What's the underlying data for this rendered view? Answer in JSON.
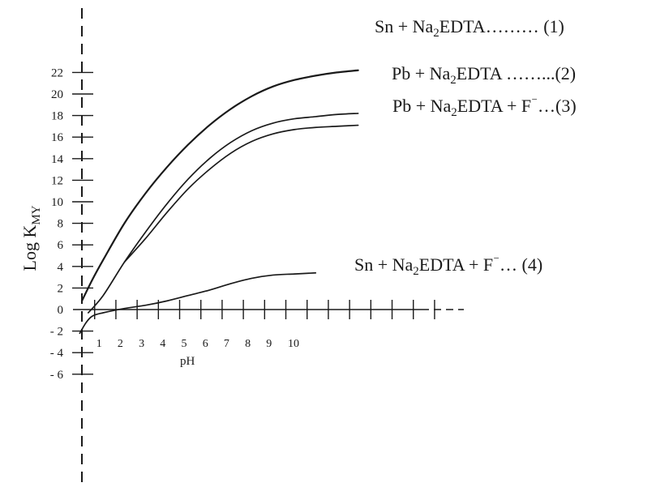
{
  "chart_data": {
    "type": "line",
    "xlabel": "pH",
    "ylabel": "Log K",
    "ylabel_sub": "MY",
    "x_ticks": [
      "1",
      "2",
      "3",
      "4",
      "5",
      "6",
      "7",
      "8",
      "9",
      "10"
    ],
    "y_ticks": [
      "22",
      "20",
      "18",
      "16",
      "14",
      "12",
      "10",
      "8",
      "6",
      "4",
      "2",
      "0",
      "- 2",
      "- 4",
      "- 6"
    ],
    "y_tick_values": [
      22,
      20,
      18,
      16,
      14,
      12,
      10,
      8,
      6,
      4,
      2,
      0,
      -2,
      -4,
      -6
    ],
    "xlim": [
      0,
      18
    ],
    "ylim": [
      -8,
      23
    ],
    "grid": false,
    "series": [
      {
        "name": "Sn + Na2EDTA……… (1)",
        "label_parts": [
          "Sn + Na",
          "2",
          "EDTA……… (1)"
        ],
        "x": [
          0,
          0.5,
          1,
          2,
          3,
          4,
          5,
          6,
          7,
          8,
          9,
          10,
          11,
          12,
          13
        ],
        "y": [
          0.8,
          2.8,
          4.6,
          8.0,
          10.8,
          13.2,
          15.3,
          17.1,
          18.6,
          19.8,
          20.7,
          21.3,
          21.7,
          22.0,
          22.2
        ]
      },
      {
        "name": "Pb + Na2EDTA ……...(2)",
        "label_parts": [
          "Pb + Na",
          "2",
          "EDTA ……...(2)"
        ],
        "x": [
          0.3,
          1,
          2,
          3,
          4,
          5,
          6,
          7,
          8,
          9,
          10,
          11,
          12,
          13
        ],
        "y": [
          -0.3,
          1.3,
          4.4,
          7.2,
          9.8,
          12.1,
          14.0,
          15.5,
          16.6,
          17.3,
          17.7,
          17.9,
          18.1,
          18.2
        ]
      },
      {
        "name": "Pb + Na2EDTA + F⁻…(3)",
        "label_parts": [
          "Pb + Na",
          "2",
          "EDTA + F",
          "⁻",
          "…(3)"
        ],
        "x": [
          2,
          3,
          4,
          5,
          6,
          7,
          8,
          9,
          10,
          11,
          12,
          13
        ],
        "y": [
          4.4,
          6.6,
          9.0,
          11.2,
          13.0,
          14.5,
          15.6,
          16.3,
          16.7,
          16.9,
          17.0,
          17.1
        ]
      },
      {
        "name": "Sn + Na2EDTA + F⁻… (4)",
        "label_parts": [
          "Sn + Na",
          "2",
          "EDTA + F",
          "⁻",
          "… (4)"
        ],
        "x": [
          -0.1,
          0.2,
          0.5,
          1,
          2,
          3,
          4,
          5,
          6,
          7,
          8,
          9,
          10,
          11
        ],
        "y": [
          -2.2,
          -1.2,
          -0.6,
          -0.3,
          0.1,
          0.4,
          0.8,
          1.3,
          1.8,
          2.4,
          2.9,
          3.2,
          3.3,
          3.4
        ]
      }
    ]
  }
}
